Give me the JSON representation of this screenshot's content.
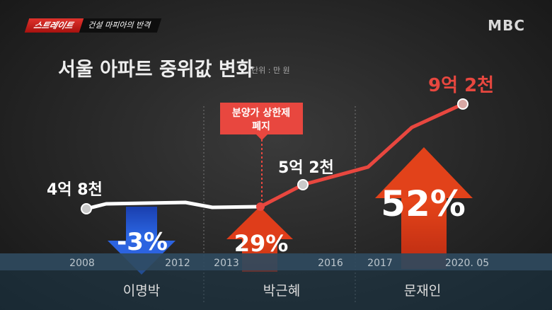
{
  "header": {
    "badge": "스트레이트",
    "segment": "건설 마피아의 반격"
  },
  "logo": "MBC",
  "chart_data": {
    "type": "line",
    "title": "서울 아파트 중위값 변화",
    "unit_label": "단위 : 만 원",
    "x_ticks": [
      "2008",
      "2012",
      "2013",
      "2016",
      "2017",
      "2020. 05"
    ],
    "eras": [
      "이명박",
      "박근혜",
      "문재인"
    ],
    "point_labels": [
      {
        "text": "4억 8천",
        "value": 48000
      },
      {
        "text": "5억 2천",
        "value": 52000
      },
      {
        "text": "9억 2천",
        "value": 92000
      }
    ],
    "annotation": {
      "line1": "분양가 상한제",
      "line2": "폐지"
    },
    "changes": [
      {
        "era": "이명박",
        "text": "-3%",
        "direction": "down",
        "color": "#1f5bd6"
      },
      {
        "era": "박근혜",
        "text": "29%",
        "direction": "up",
        "color": "#d93a17"
      },
      {
        "era": "문재인",
        "text": "52%",
        "direction": "up",
        "color": "#d93a17"
      }
    ],
    "colors": {
      "white_line": "#ffffff",
      "red_line": "#e8473f"
    }
  }
}
